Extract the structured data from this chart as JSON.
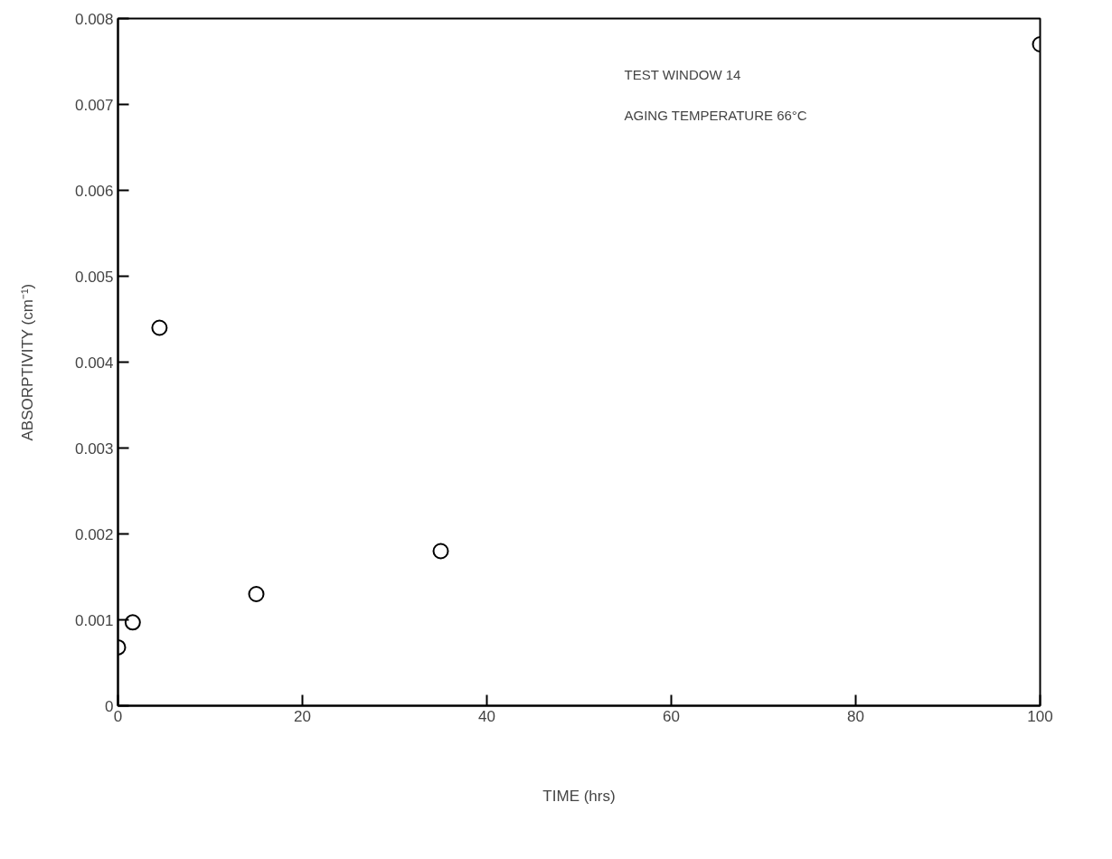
{
  "chart_data": {
    "type": "scatter",
    "xlabel": "TIME (hrs)",
    "ylabel": "ABSORPTIVITY (cm⁻¹)",
    "x": [
      0,
      1.6,
      4.5,
      15,
      35,
      100
    ],
    "values": [
      0.00068,
      0.00097,
      0.0044,
      0.0013,
      0.0018,
      0.0077
    ],
    "color": "#000000",
    "marker": "circle",
    "xlim": [
      0,
      100
    ],
    "xticks": [
      0,
      20,
      40,
      60,
      80,
      100
    ],
    "ylim": [
      0,
      0.008
    ],
    "yticks": [
      {
        "value": 0,
        "label": "0"
      },
      0.001,
      0.002,
      0.003,
      0.004,
      0.005,
      0.006,
      0.007,
      0.008
    ],
    "annotations": [
      "TEST WINDOW 14",
      "AGING TEMPERATURE 66°C"
    ],
    "grid": false
  }
}
